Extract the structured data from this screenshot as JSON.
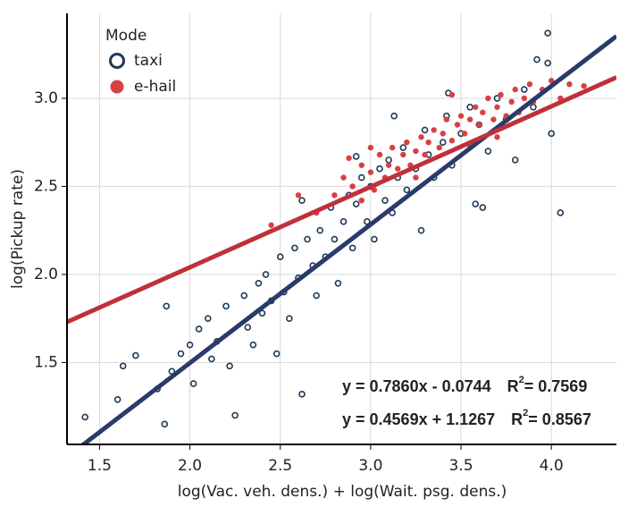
{
  "chart_data": {
    "type": "scatter",
    "x_label": "log(Vac. veh. dens.) + log(Wait. psg. dens.)",
    "y_label": "log(Pickup rate)",
    "legend_title": "Mode",
    "xlim": [
      1.32,
      4.36
    ],
    "ylim": [
      1.035,
      3.482
    ],
    "xticks": [
      1.5,
      {
        "value": 2,
        "label": "2.0"
      },
      2.5,
      {
        "value": 3,
        "label": "3.0"
      },
      3.5,
      {
        "value": 4,
        "label": "4.0"
      }
    ],
    "yticks": [
      1.5,
      {
        "value": 2,
        "label": "2.0"
      },
      2.5,
      {
        "value": 3,
        "label": "3.0"
      }
    ],
    "grid": true,
    "series": [
      {
        "name": "taxi",
        "color": "#1e3a56",
        "marker": "open",
        "x": [
          1.42,
          1.6,
          1.63,
          1.7,
          1.86,
          1.87,
          1.82,
          1.9,
          1.95,
          2.0,
          2.02,
          2.05,
          2.1,
          2.12,
          2.15,
          2.2,
          2.22,
          2.25,
          2.3,
          2.32,
          2.35,
          2.38,
          2.4,
          2.42,
          2.45,
          2.48,
          2.5,
          2.52,
          2.55,
          2.58,
          2.6,
          2.62,
          2.65,
          2.68,
          2.7,
          2.72,
          2.75,
          2.78,
          2.8,
          2.82,
          2.85,
          2.88,
          2.9,
          2.92,
          2.95,
          2.98,
          3.0,
          3.02,
          3.05,
          3.08,
          3.1,
          3.12,
          3.15,
          3.18,
          3.2,
          3.25,
          3.28,
          3.3,
          3.32,
          3.35,
          3.4,
          3.42,
          3.45,
          3.5,
          3.55,
          3.58,
          3.6,
          3.65,
          3.7,
          3.75,
          3.8,
          3.85,
          3.9,
          3.92,
          3.98,
          4.0,
          4.05,
          3.98,
          3.43,
          3.13,
          2.92,
          3.62,
          2.62
        ],
        "values": [
          1.19,
          1.29,
          1.48,
          1.54,
          1.15,
          1.82,
          1.35,
          1.45,
          1.55,
          1.6,
          1.38,
          1.69,
          1.75,
          1.52,
          1.62,
          1.82,
          1.48,
          1.2,
          1.88,
          1.7,
          1.6,
          1.95,
          1.78,
          2.0,
          1.85,
          1.55,
          2.1,
          1.9,
          1.75,
          2.15,
          1.98,
          1.32,
          2.2,
          2.05,
          1.88,
          2.25,
          2.1,
          2.38,
          2.2,
          1.95,
          2.3,
          2.45,
          2.15,
          2.4,
          2.55,
          2.3,
          2.5,
          2.2,
          2.6,
          2.42,
          2.65,
          2.35,
          2.55,
          2.72,
          2.48,
          2.6,
          2.25,
          2.82,
          2.68,
          2.55,
          2.75,
          2.9,
          2.62,
          2.8,
          2.95,
          2.4,
          2.85,
          2.7,
          3.0,
          2.88,
          2.65,
          3.05,
          2.95,
          3.22,
          3.2,
          2.8,
          2.35,
          3.37,
          3.03,
          2.9,
          2.67,
          2.38,
          2.42
        ]
      },
      {
        "name": "e-hail",
        "color": "#d84040",
        "marker": "filled",
        "x": [
          2.45,
          2.7,
          2.8,
          2.85,
          2.9,
          2.95,
          3.0,
          3.02,
          3.05,
          3.08,
          3.1,
          3.12,
          3.15,
          3.18,
          3.2,
          3.22,
          3.25,
          3.28,
          3.3,
          3.32,
          3.35,
          3.38,
          3.4,
          3.42,
          3.45,
          3.48,
          3.5,
          3.52,
          3.55,
          3.58,
          3.6,
          3.62,
          3.65,
          3.68,
          3.7,
          3.72,
          3.75,
          3.78,
          3.8,
          3.82,
          3.85,
          3.88,
          3.9,
          3.95,
          4.0,
          4.05,
          4.1,
          4.18,
          3.55,
          3.25,
          3.0,
          2.88,
          3.45,
          3.7,
          2.6,
          2.95
        ],
        "values": [
          2.28,
          2.35,
          2.45,
          2.55,
          2.5,
          2.62,
          2.58,
          2.48,
          2.68,
          2.55,
          2.62,
          2.72,
          2.6,
          2.68,
          2.75,
          2.62,
          2.7,
          2.78,
          2.68,
          2.75,
          2.82,
          2.72,
          2.8,
          2.88,
          2.76,
          2.85,
          2.9,
          2.8,
          2.88,
          2.95,
          2.85,
          2.92,
          3.0,
          2.88,
          2.95,
          3.02,
          2.9,
          2.98,
          3.05,
          2.92,
          3.0,
          3.08,
          2.98,
          3.05,
          3.1,
          3.0,
          3.08,
          3.07,
          2.72,
          2.55,
          2.72,
          2.66,
          3.02,
          2.78,
          2.45,
          2.42
        ]
      }
    ],
    "fits": [
      {
        "color": "#2b3a6b",
        "slope": 0.786,
        "intercept": -0.0744,
        "equation": "y = 0.7860x - 0.0744",
        "r2_symbol": "R",
        "r2_power": "2",
        "r2_value": "= 0.7569"
      },
      {
        "color": "#c0303a",
        "slope": 0.4569,
        "intercept": 1.1267,
        "equation": "y = 0.4569x + 1.1267",
        "r2_symbol": "R",
        "r2_power": "2",
        "r2_value": "= 0.8567"
      }
    ]
  }
}
